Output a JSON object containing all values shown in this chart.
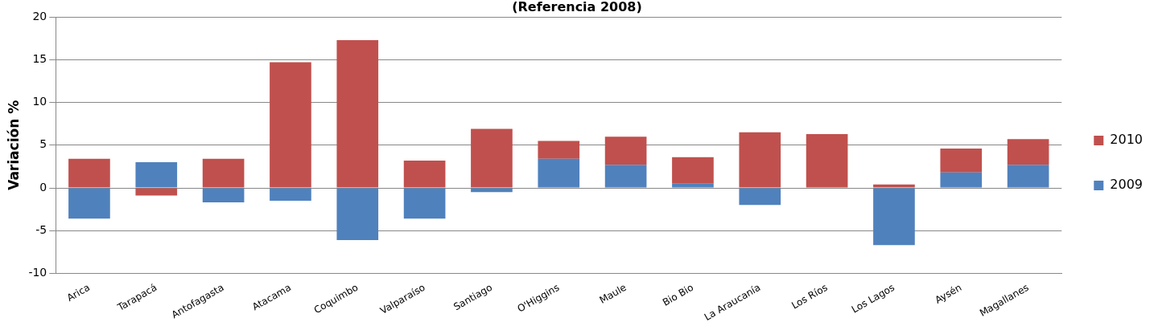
{
  "chart_data": {
    "type": "bar",
    "title": "(Referencia 2008)",
    "ylabel": "Variación %",
    "categories": [
      "Arica",
      "Tarapacá",
      "Antofagasta",
      "Atacama",
      "Coquimbo",
      "Valparaíso",
      "Santiago",
      "O'Higgins",
      "Maule",
      "Bio Bio",
      "La Araucanía",
      "Los Ríos",
      "Los Lagos",
      "Aysén",
      "Magallanes"
    ],
    "stacked": true,
    "series": [
      {
        "name": "2009",
        "color": "#4f81bd",
        "values": [
          -3.6,
          3.0,
          -1.7,
          -1.5,
          -6.1,
          -3.6,
          -0.5,
          3.4,
          2.7,
          0.5,
          -2.0,
          0.1,
          -6.7,
          1.8,
          2.7
        ]
      },
      {
        "name": "2010",
        "color": "#c0504d",
        "values": [
          3.4,
          -0.9,
          3.4,
          14.7,
          17.3,
          3.2,
          6.9,
          2.1,
          3.3,
          3.1,
          6.5,
          6.2,
          0.4,
          2.8,
          3.0
        ]
      }
    ],
    "ylim": [
      -10,
      20
    ],
    "yticks": [
      -10,
      -5,
      0,
      5,
      10,
      15,
      20
    ],
    "grid": "y",
    "legend": "right"
  }
}
